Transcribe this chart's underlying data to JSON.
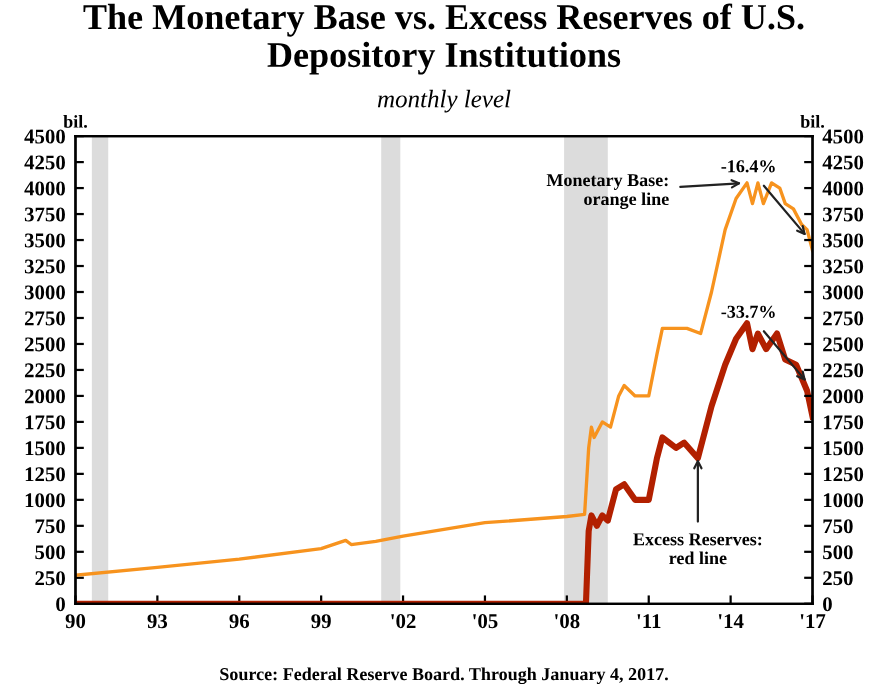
{
  "chart_data": {
    "type": "line",
    "title": "The Monetary Base vs. Excess Reserves of U.S. Depository Institutions",
    "subtitle": "monthly level",
    "ylabel": "bil.",
    "y2label": "bil.",
    "xlim": [
      1990,
      2017
    ],
    "xticks": [
      {
        "value": 1990,
        "label": "90"
      },
      {
        "value": 1993,
        "label": "93"
      },
      {
        "value": 1996,
        "label": "96"
      },
      {
        "value": 1999,
        "label": "99"
      },
      {
        "value": 2002,
        "label": "'02"
      },
      {
        "value": 2005,
        "label": "'05"
      },
      {
        "value": 2008,
        "label": "'08"
      },
      {
        "value": 2011,
        "label": "'11"
      },
      {
        "value": 2014,
        "label": "'14"
      },
      {
        "value": 2017,
        "label": "'17"
      }
    ],
    "ylim": [
      0,
      4500
    ],
    "yticks": [
      0,
      250,
      500,
      750,
      1000,
      1250,
      1500,
      1750,
      2000,
      2250,
      2500,
      2750,
      3000,
      3250,
      3500,
      3750,
      4000,
      4250,
      4500
    ],
    "y2lim": [
      0,
      4500
    ],
    "y2ticks": [
      0,
      250,
      500,
      750,
      1000,
      1250,
      1500,
      1750,
      2000,
      2250,
      2500,
      2750,
      3000,
      3250,
      3500,
      3750,
      4000,
      4250,
      4500
    ],
    "grid": false,
    "bands": [
      {
        "axis": "x",
        "from": 1990.6,
        "to": 1991.2,
        "color": "#dcdcdc"
      },
      {
        "axis": "x",
        "from": 2001.2,
        "to": 2001.9,
        "color": "#dcdcdc"
      },
      {
        "axis": "x",
        "from": 2007.9,
        "to": 2009.5,
        "color": "#dcdcdc"
      }
    ],
    "series": [
      {
        "color": "#f7931e",
        "x": [
          1990,
          1993,
          1996,
          1999,
          1999.9,
          2000.1,
          2001,
          2002,
          2005,
          2008,
          2008.65,
          2008.8,
          2008.9,
          2009.0,
          2009.3,
          2009.6,
          2009.9,
          2010.1,
          2010.5,
          2011.0,
          2011.3,
          2011.5,
          2012,
          2012.4,
          2012.9,
          2013.3,
          2013.8,
          2014.2,
          2014.6,
          2014.8,
          2015,
          2015.2,
          2015.5,
          2015.8,
          2016,
          2016.3,
          2016.6,
          2016.8,
          2017
        ],
        "values": [
          275,
          350,
          430,
          530,
          610,
          570,
          600,
          650,
          780,
          840,
          860,
          1500,
          1700,
          1600,
          1750,
          1700,
          2000,
          2100,
          2000,
          2000,
          2400,
          2650,
          2650,
          2650,
          2600,
          3000,
          3600,
          3900,
          4050,
          3850,
          4050,
          3850,
          4050,
          4000,
          3850,
          3800,
          3650,
          3600,
          3400
        ]
      },
      {
        "color": "#b22000",
        "x": [
          1990,
          2008.6,
          2008.7,
          2008.8,
          2008.9,
          2009.1,
          2009.3,
          2009.5,
          2009.8,
          2010.1,
          2010.5,
          2011,
          2011.3,
          2011.5,
          2012,
          2012.3,
          2012.8,
          2013.3,
          2013.8,
          2014.2,
          2014.6,
          2014.8,
          2015,
          2015.3,
          2015.7,
          2016,
          2016.4,
          2016.8,
          2017
        ],
        "values": [
          0,
          0,
          0,
          700,
          850,
          750,
          850,
          800,
          1100,
          1150,
          1000,
          1000,
          1400,
          1600,
          1500,
          1550,
          1400,
          1900,
          2300,
          2550,
          2700,
          2450,
          2600,
          2450,
          2600,
          2350,
          2300,
          2050,
          1800
        ]
      }
    ],
    "annotations": [
      {
        "text": "Monetary Base:\norange line",
        "x": 2014.6,
        "y": 4050
      },
      {
        "text": "-16.4%",
        "x": 2016.9,
        "y": 3500
      },
      {
        "text": "-33.7%",
        "x": 2016.9,
        "y": 2100
      },
      {
        "text": "Excess Reserves:\nred line",
        "x": 2012.8,
        "y": 1450
      },
      "Source: Federal Reserve Board. Through January 4, 2017."
    ]
  }
}
